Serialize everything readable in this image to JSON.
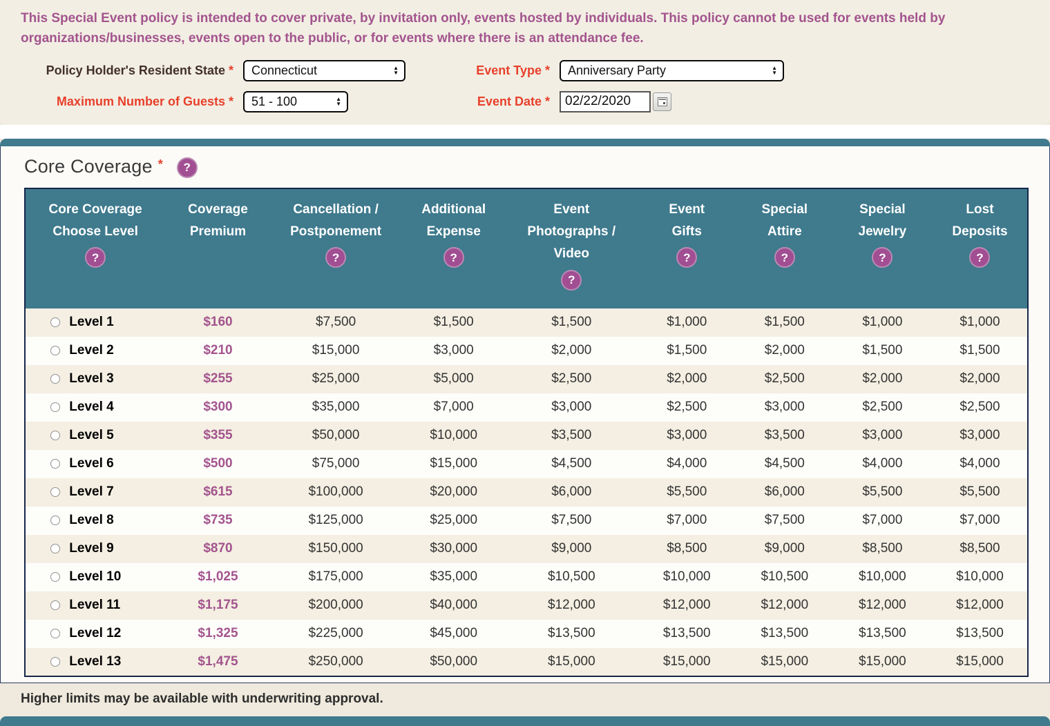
{
  "icons": {
    "help_glyph": "?",
    "arrow_up": "▲",
    "arrow_down": "▼"
  },
  "intro": {
    "text": "This Special Event policy is intended to cover private, by invitation only, events hosted by individuals. This policy cannot be used for events held by organizations/businesses, events open to the public, or for events where there is an attendance fee."
  },
  "form": {
    "required_mark": "*",
    "resident_state_label": "Policy Holder's Resident State",
    "resident_state_value": "Connecticut",
    "event_type_label": "Event Type",
    "event_type_value": "Anniversary Party",
    "max_guests_label": "Maximum Number of Guests",
    "max_guests_value": "51 - 100",
    "event_date_label": "Event Date",
    "event_date_value": "02/22/2020"
  },
  "section": {
    "title": "Core Coverage",
    "required_mark": "*"
  },
  "table": {
    "headers": [
      {
        "label": "Core Coverage Choose Level",
        "help": true
      },
      {
        "label": "Coverage Premium",
        "help": false
      },
      {
        "label": "Cancellation / Postponement",
        "help": true
      },
      {
        "label": "Additional Expense",
        "help": true
      },
      {
        "label": "Event Photographs / Video",
        "help": true
      },
      {
        "label": "Event Gifts",
        "help": true
      },
      {
        "label": "Special Attire",
        "help": true
      },
      {
        "label": "Special Jewelry",
        "help": true
      },
      {
        "label": "Lost Deposits",
        "help": true
      }
    ],
    "rows": [
      {
        "level": "Level 1",
        "premium": "$160",
        "amounts": [
          "$7,500",
          "$1,500",
          "$1,500",
          "$1,000",
          "$1,500",
          "$1,000",
          "$1,000"
        ]
      },
      {
        "level": "Level 2",
        "premium": "$210",
        "amounts": [
          "$15,000",
          "$3,000",
          "$2,000",
          "$1,500",
          "$2,000",
          "$1,500",
          "$1,500"
        ]
      },
      {
        "level": "Level 3",
        "premium": "$255",
        "amounts": [
          "$25,000",
          "$5,000",
          "$2,500",
          "$2,000",
          "$2,500",
          "$2,000",
          "$2,000"
        ]
      },
      {
        "level": "Level 4",
        "premium": "$300",
        "amounts": [
          "$35,000",
          "$7,000",
          "$3,000",
          "$2,500",
          "$3,000",
          "$2,500",
          "$2,500"
        ]
      },
      {
        "level": "Level 5",
        "premium": "$355",
        "amounts": [
          "$50,000",
          "$10,000",
          "$3,500",
          "$3,000",
          "$3,500",
          "$3,000",
          "$3,000"
        ]
      },
      {
        "level": "Level 6",
        "premium": "$500",
        "amounts": [
          "$75,000",
          "$15,000",
          "$4,500",
          "$4,000",
          "$4,500",
          "$4,000",
          "$4,000"
        ]
      },
      {
        "level": "Level 7",
        "premium": "$615",
        "amounts": [
          "$100,000",
          "$20,000",
          "$6,000",
          "$5,500",
          "$6,000",
          "$5,500",
          "$5,500"
        ]
      },
      {
        "level": "Level 8",
        "premium": "$735",
        "amounts": [
          "$125,000",
          "$25,000",
          "$7,500",
          "$7,000",
          "$7,500",
          "$7,000",
          "$7,000"
        ]
      },
      {
        "level": "Level 9",
        "premium": "$870",
        "amounts": [
          "$150,000",
          "$30,000",
          "$9,000",
          "$8,500",
          "$9,000",
          "$8,500",
          "$8,500"
        ]
      },
      {
        "level": "Level 10",
        "premium": "$1,025",
        "amounts": [
          "$175,000",
          "$35,000",
          "$10,500",
          "$10,000",
          "$10,500",
          "$10,000",
          "$10,000"
        ]
      },
      {
        "level": "Level 11",
        "premium": "$1,175",
        "amounts": [
          "$200,000",
          "$40,000",
          "$12,000",
          "$12,000",
          "$12,000",
          "$12,000",
          "$12,000"
        ]
      },
      {
        "level": "Level 12",
        "premium": "$1,325",
        "amounts": [
          "$225,000",
          "$45,000",
          "$13,500",
          "$13,500",
          "$13,500",
          "$13,500",
          "$13,500"
        ]
      },
      {
        "level": "Level 13",
        "premium": "$1,475",
        "amounts": [
          "$250,000",
          "$50,000",
          "$15,000",
          "$15,000",
          "$15,000",
          "$15,000",
          "$15,000"
        ]
      }
    ]
  },
  "note": "Higher limits may be available with underwriting approval."
}
